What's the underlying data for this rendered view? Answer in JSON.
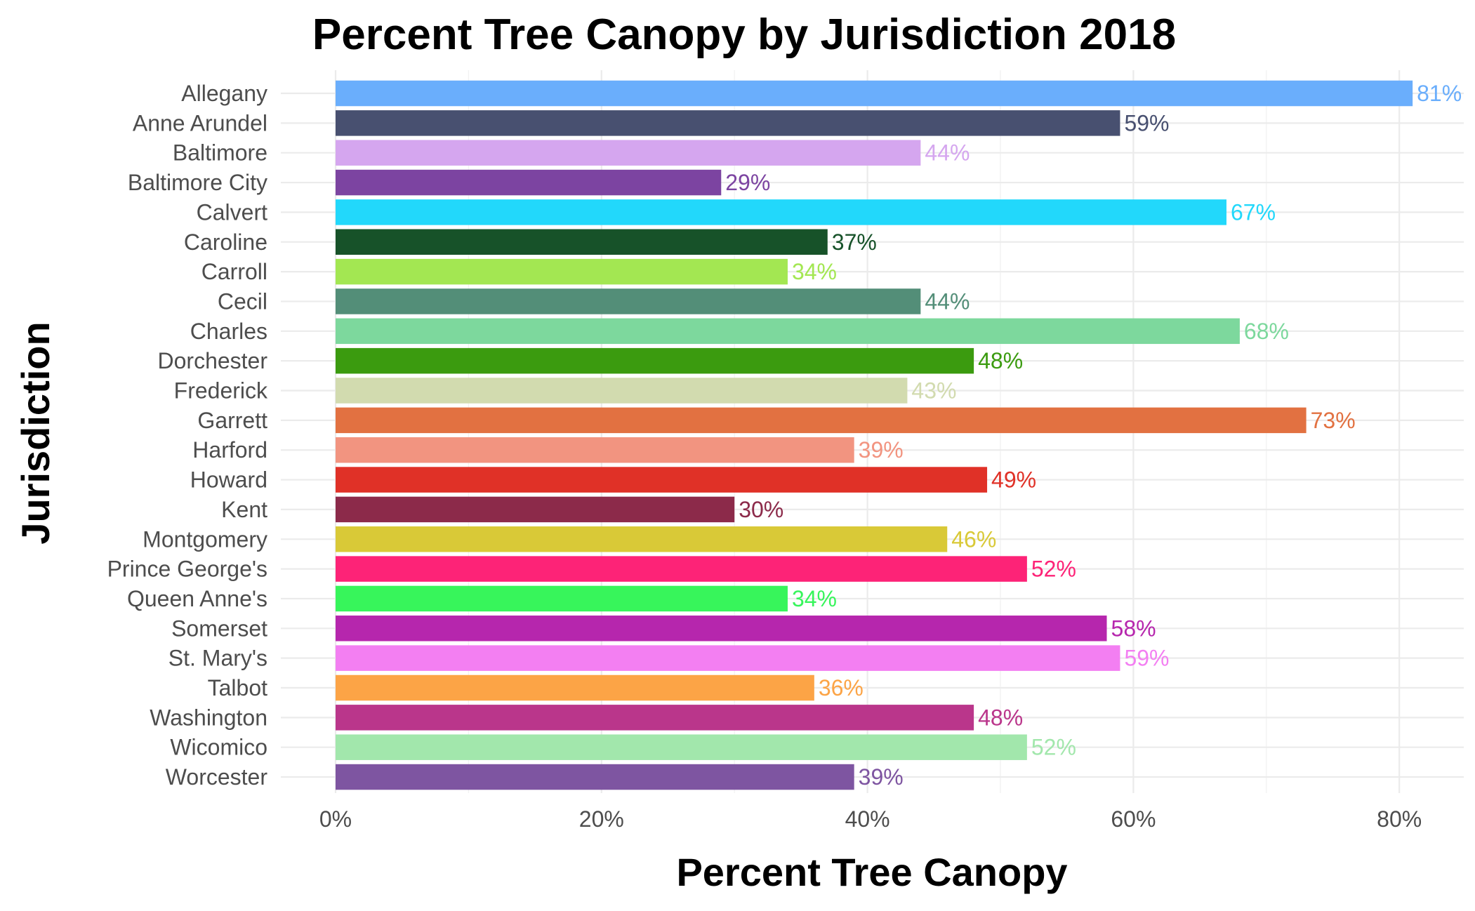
{
  "chart_data": {
    "type": "bar",
    "orientation": "horizontal",
    "title": "Percent Tree Canopy by Jurisdiction 2018",
    "xlabel": "Percent Tree Canopy",
    "ylabel": "Jurisdiction",
    "xlim": [
      0,
      0.8
    ],
    "x_ticks": [
      0,
      0.2,
      0.4,
      0.6,
      0.8
    ],
    "x_tick_labels": [
      "0%",
      "20%",
      "40%",
      "60%",
      "80%"
    ],
    "grid": true,
    "legend": "none",
    "categories": [
      "Allegany",
      "Anne Arundel",
      "Baltimore",
      "Baltimore City",
      "Calvert",
      "Caroline",
      "Carroll",
      "Cecil",
      "Charles",
      "Dorchester",
      "Frederick",
      "Garrett",
      "Harford",
      "Howard",
      "Kent",
      "Montgomery",
      "Prince George's",
      "Queen Anne's",
      "Somerset",
      "St. Mary's",
      "Talbot",
      "Washington",
      "Wicomico",
      "Worcester"
    ],
    "values": [
      0.81,
      0.59,
      0.44,
      0.29,
      0.67,
      0.37,
      0.34,
      0.44,
      0.68,
      0.48,
      0.43,
      0.73,
      0.39,
      0.49,
      0.3,
      0.46,
      0.52,
      0.34,
      0.58,
      0.59,
      0.36,
      0.48,
      0.52,
      0.39
    ],
    "data_labels": [
      "81%",
      "59%",
      "44%",
      "29%",
      "67%",
      "37%",
      "34%",
      "44%",
      "68%",
      "48%",
      "43%",
      "73%",
      "39%",
      "49%",
      "30%",
      "46%",
      "52%",
      "34%",
      "58%",
      "59%",
      "36%",
      "48%",
      "52%",
      "39%"
    ],
    "colors": [
      "#6aaefc",
      "#485070",
      "#d5a6ef",
      "#7c44a1",
      "#22d8fb",
      "#175229",
      "#a3e752",
      "#538e78",
      "#7dd89d",
      "#3b9b0f",
      "#d2dbaf",
      "#e27141",
      "#f29480",
      "#e03127",
      "#8c2a4a",
      "#d9c937",
      "#fd2377",
      "#37f55b",
      "#b626ad",
      "#f37ff2",
      "#fca446",
      "#ba368b",
      "#a2e7ac",
      "#7e55a1"
    ]
  }
}
